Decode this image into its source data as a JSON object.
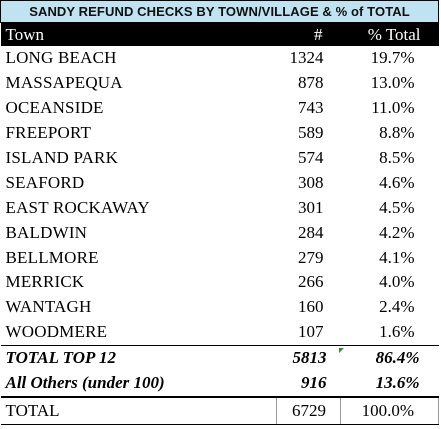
{
  "title": "SANDY REFUND CHECKS BY TOWN/VILLAGE & % of TOTAL",
  "headers": {
    "town": "Town",
    "count": "#",
    "percent": "% Total"
  },
  "rows": [
    {
      "town": "LONG BEACH",
      "count": "1324",
      "percent": "19.7%"
    },
    {
      "town": "MASSAPEQUA",
      "count": "878",
      "percent": "13.0%"
    },
    {
      "town": "OCEANSIDE",
      "count": "743",
      "percent": "11.0%"
    },
    {
      "town": "FREEPORT",
      "count": "589",
      "percent": "8.8%"
    },
    {
      "town": "ISLAND PARK",
      "count": "574",
      "percent": "8.5%"
    },
    {
      "town": "SEAFORD",
      "count": "308",
      "percent": "4.6%"
    },
    {
      "town": "EAST ROCKAWAY",
      "count": "301",
      "percent": "4.5%"
    },
    {
      "town": "BALDWIN",
      "count": "284",
      "percent": "4.2%"
    },
    {
      "town": "BELLMORE",
      "count": "279",
      "percent": "4.1%"
    },
    {
      "town": "MERRICK",
      "count": "266",
      "percent": "4.0%"
    },
    {
      "town": "WANTAGH",
      "count": "160",
      "percent": "2.4%"
    },
    {
      "town": "WOODMERE",
      "count": "107",
      "percent": "1.6%"
    }
  ],
  "summary": [
    {
      "town": "TOTAL TOP 12",
      "count": "5813",
      "percent": "86.4%"
    },
    {
      "town": "All Others (under 100)",
      "count": "916",
      "percent": "13.6%"
    }
  ],
  "total": {
    "town": "TOTAL",
    "count": "6729",
    "percent": "100.0%"
  },
  "colors": {
    "title_bg": "#bfe3f0",
    "header_bg": "#000000",
    "header_text": "#ffffff",
    "marker": "#2e8b3a"
  }
}
